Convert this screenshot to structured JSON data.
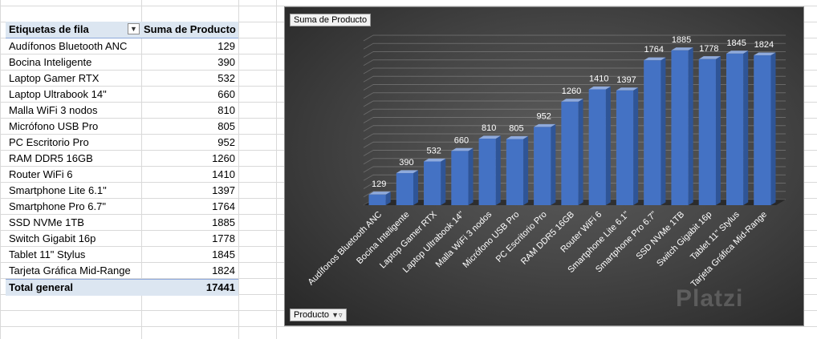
{
  "pivot": {
    "header_label": "Etiquetas de fila",
    "header_value": "Suma de Producto",
    "filter_icon": "filter-dropdown-icon",
    "rows": [
      {
        "label": "Audífonos Bluetooth ANC",
        "value": "129"
      },
      {
        "label": "Bocina Inteligente",
        "value": "390"
      },
      {
        "label": "Laptop Gamer RTX",
        "value": "532"
      },
      {
        "label": "Laptop Ultrabook 14\"",
        "value": "660"
      },
      {
        "label": "Malla WiFi 3 nodos",
        "value": "810"
      },
      {
        "label": "Micrófono USB Pro",
        "value": "805"
      },
      {
        "label": "PC Escritorio Pro",
        "value": "952"
      },
      {
        "label": "RAM DDR5 16GB",
        "value": "1260"
      },
      {
        "label": "Router WiFi 6",
        "value": "1410"
      },
      {
        "label": "Smartphone Lite 6.1\"",
        "value": "1397"
      },
      {
        "label": "Smartphone Pro 6.7\"",
        "value": "1764"
      },
      {
        "label": "SSD NVMe 1TB",
        "value": "1885"
      },
      {
        "label": "Switch Gigabit 16p",
        "value": "1778"
      },
      {
        "label": "Tablet 11\" Stylus",
        "value": "1845"
      },
      {
        "label": "Tarjeta Gráfica Mid-Range",
        "value": "1824"
      }
    ],
    "total_label": "Total general",
    "total_value": "17441"
  },
  "chart_buttons": {
    "title": "Suma de Producto",
    "axis_field": "Producto"
  },
  "watermark": "Platzi",
  "colors": {
    "bar_front": "#4472c4",
    "bar_side": "#2f5597",
    "bar_top": "#8faadc",
    "chart_bg": "#474747",
    "pivot_header": "#dce6f1"
  },
  "chart_data": {
    "type": "bar",
    "style": "3d-column",
    "categories": [
      "Audífonos Bluetooth ANC",
      "Bocina Inteligente",
      "Laptop Gamer RTX",
      "Laptop Ultrabook 14\"",
      "Malla WiFi 3 nodos",
      "Micrófono USB Pro",
      "PC Escritorio Pro",
      "RAM DDR5 16GB",
      "Router WiFi 6",
      "Smartphone Lite 6.1\"",
      "Smartphone Pro 6.7\"",
      "SSD NVMe 1TB",
      "Switch Gigabit 16p",
      "Tablet 11\" Stylus",
      "Tarjeta Gráfica Mid-Range"
    ],
    "values": [
      129,
      390,
      532,
      660,
      810,
      805,
      952,
      1260,
      1410,
      1397,
      1764,
      1885,
      1778,
      1845,
      1824
    ],
    "title": "",
    "xlabel": "",
    "ylabel": "",
    "ylim": [
      0,
      2000
    ],
    "grid": true,
    "legend": "none",
    "data_labels": true
  }
}
